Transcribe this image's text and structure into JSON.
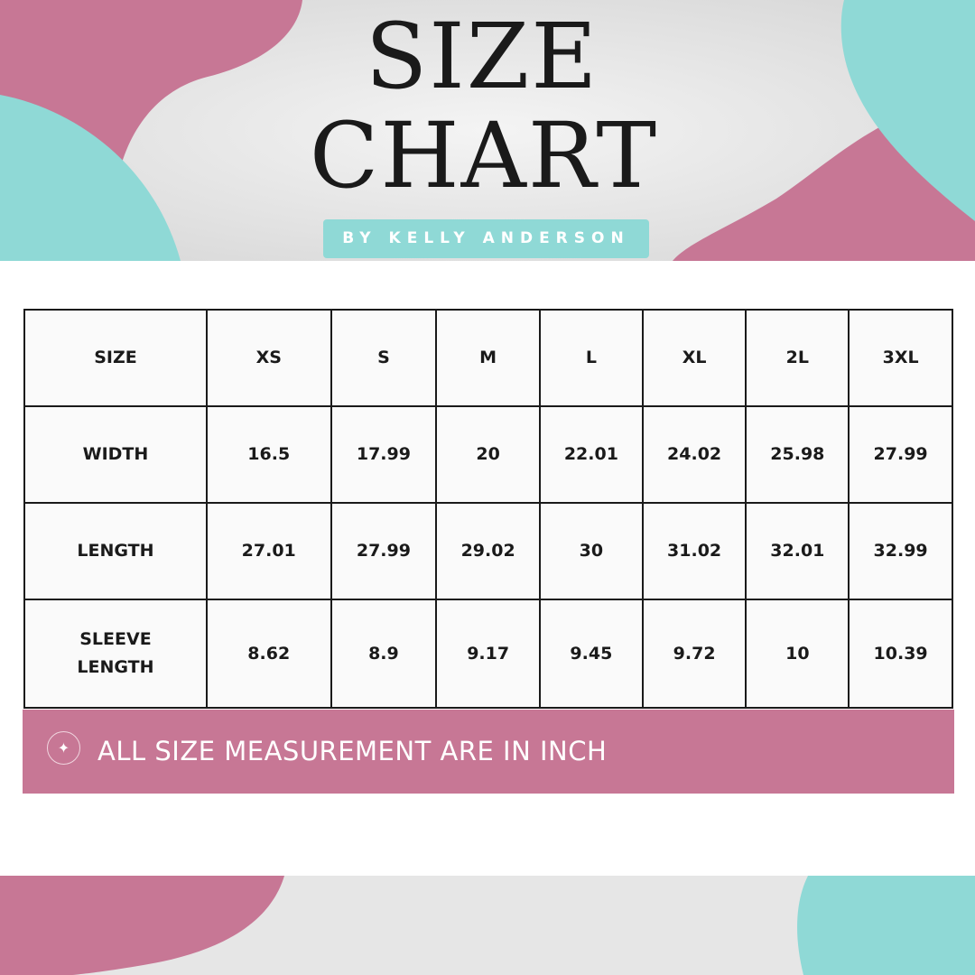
{
  "header": {
    "title_line1": "SIZE",
    "title_line2": "CHART",
    "byline": "BY KELLY ANDERSON"
  },
  "colors": {
    "pink": "#c77795",
    "teal": "#8fd9d6",
    "text": "#1a1a1a"
  },
  "table": {
    "header": [
      "SIZE",
      "XS",
      "S",
      "M",
      "L",
      "XL",
      "2L",
      "3XL"
    ],
    "rows": [
      [
        "WIDTH",
        "16.5",
        "17.99",
        "20",
        "22.01",
        "24.02",
        "25.98",
        "27.99"
      ],
      [
        "LENGTH",
        "27.01",
        "27.99",
        "29.02",
        "30",
        "31.02",
        "32.01",
        "32.99"
      ],
      [
        "SLEEVE LENGTH",
        "8.62",
        "8.9",
        "9.17",
        "9.45",
        "9.72",
        "10",
        "10.39"
      ]
    ]
  },
  "note": {
    "icon": "sparkle-icon",
    "text": "ALL SIZE MEASUREMENT ARE IN INCH"
  }
}
